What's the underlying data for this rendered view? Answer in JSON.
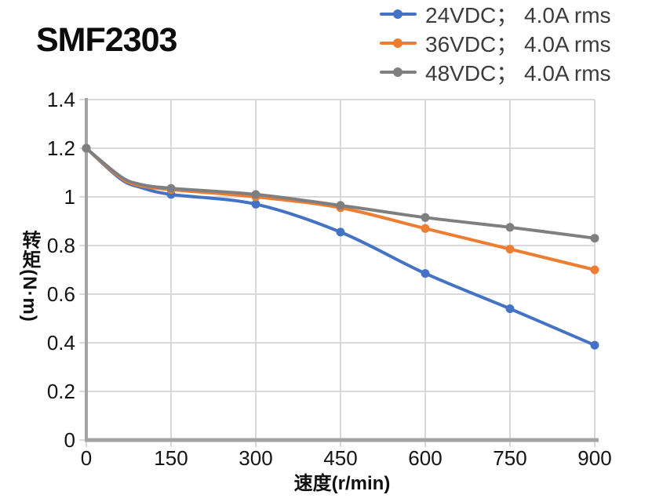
{
  "title": "SMF2303",
  "legend": {
    "items": [
      {
        "label": "24VDC； 4.0A rms",
        "color": "#4472c4"
      },
      {
        "label": "36VDC； 4.0A rms",
        "color": "#ed7d31"
      },
      {
        "label": "48VDC； 4.0A rms",
        "color": "#7f7f7f"
      }
    ]
  },
  "axes": {
    "x": {
      "title": "速度(r/min)",
      "ticks": [
        "0",
        "150",
        "300",
        "450",
        "600",
        "750",
        "900"
      ]
    },
    "y": {
      "title": "转矩(N·m)",
      "ticks": [
        "1.4",
        "1.2",
        "1",
        "0.8",
        "0.6",
        "0.4",
        "0.2",
        "0"
      ]
    }
  },
  "chart_data": {
    "type": "line",
    "title": "SMF2303",
    "xlabel": "速度(r/min)",
    "ylabel": "转矩(N·m)",
    "x": [
      0,
      150,
      300,
      450,
      600,
      750,
      900
    ],
    "xlim": [
      0,
      900
    ],
    "ylim": [
      0,
      1.4
    ],
    "y_ticks": [
      1.4,
      1.2,
      1,
      0.8,
      0.6,
      0.4,
      0.2,
      0
    ],
    "grid": true,
    "legend_position": "top-right",
    "marker": "circle",
    "series": [
      {
        "name": "24VDC； 4.0A rms",
        "color": "#4472c4",
        "values": [
          1.2,
          1.01,
          0.97,
          0.855,
          0.685,
          0.54,
          0.39
        ],
        "curve_shape_points": [
          [
            60,
            1.075
          ],
          [
            95,
            1.04
          ]
        ]
      },
      {
        "name": "36VDC； 4.0A rms",
        "color": "#ed7d31",
        "values": [
          1.2,
          1.03,
          1.0,
          0.955,
          0.87,
          0.785,
          0.7
        ],
        "curve_shape_points": [
          [
            60,
            1.08
          ],
          [
            95,
            1.046
          ]
        ]
      },
      {
        "name": "48VDC； 4.0A rms",
        "color": "#7f7f7f",
        "values": [
          1.2,
          1.035,
          1.01,
          0.965,
          0.915,
          0.875,
          0.83
        ],
        "curve_shape_points": [
          [
            60,
            1.085
          ],
          [
            95,
            1.052
          ]
        ]
      }
    ]
  },
  "colors": {
    "gridline": "#d9d9d9",
    "axis": "#a3a3a3",
    "tick_text": "#141414",
    "legend_text": "#3c3c3c",
    "title_text": "#0c0c0c"
  }
}
